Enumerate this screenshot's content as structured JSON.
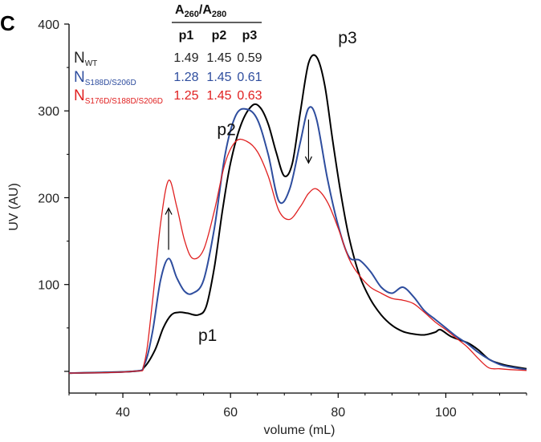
{
  "panel_label": "C",
  "chart_data": {
    "type": "line",
    "title": "",
    "xlabel": "volume (mL)",
    "ylabel": "UV (AU)",
    "xlim": [
      30,
      115
    ],
    "ylim": [
      -25,
      400
    ],
    "x_ticks": [
      40,
      60,
      80,
      100
    ],
    "y_ticks": [
      100,
      200,
      300,
      400
    ],
    "grid": false,
    "legend": "top-left table",
    "series": [
      {
        "name": "N_WT",
        "color": "#000000",
        "x": [
          30,
          42,
          44,
          46,
          47.5,
          49,
          50.5,
          52,
          54,
          55.5,
          57,
          58.5,
          60,
          62,
          64,
          65.5,
          67,
          68.5,
          70,
          71.5,
          73,
          74.5,
          76,
          77.5,
          79,
          80.5,
          82,
          84,
          86,
          88,
          90,
          92,
          94,
          96,
          98,
          99,
          101,
          104,
          106,
          108,
          110,
          112,
          115
        ],
        "y": [
          -2,
          0,
          5,
          25,
          50,
          65,
          68,
          67,
          65,
          75,
          120,
          185,
          240,
          285,
          306,
          304,
          285,
          252,
          225,
          240,
          300,
          355,
          362,
          330,
          265,
          205,
          155,
          110,
          83,
          65,
          53,
          46,
          43,
          42,
          45,
          48,
          40,
          33,
          25,
          14,
          9,
          6,
          3
        ]
      },
      {
        "name": "N_S188D/S206D",
        "color": "#2e4d9e",
        "x": [
          30,
          42,
          44,
          45.5,
          47,
          48.5,
          50,
          51.5,
          53,
          55,
          57,
          59,
          61,
          63,
          65,
          67,
          69,
          71,
          73,
          74.5,
          76,
          78,
          80,
          82,
          84,
          86,
          88,
          90,
          92,
          94,
          96,
          98,
          100,
          102,
          104,
          106,
          108,
          110,
          112,
          115
        ],
        "y": [
          -2,
          0,
          8,
          45,
          105,
          130,
          108,
          92,
          90,
          105,
          165,
          250,
          295,
          302,
          290,
          250,
          196,
          210,
          265,
          303,
          290,
          222,
          168,
          132,
          128,
          115,
          97,
          90,
          97,
          86,
          70,
          60,
          50,
          40,
          32,
          22,
          14,
          8,
          5,
          2
        ]
      },
      {
        "name": "N_S176D/S188D/S206D",
        "color": "#e02020",
        "x": [
          30,
          42,
          44,
          45.5,
          47,
          48.5,
          50,
          51.5,
          53,
          55,
          57,
          59,
          61,
          63,
          65,
          67,
          69,
          71,
          73,
          74.5,
          76,
          78,
          80,
          82,
          84,
          86,
          88,
          90,
          92,
          94,
          96,
          98,
          100,
          102,
          104,
          106,
          108,
          110,
          112,
          115
        ],
        "y": [
          -2,
          0,
          10,
          80,
          170,
          220,
          190,
          150,
          130,
          140,
          185,
          240,
          265,
          265,
          253,
          225,
          185,
          175,
          190,
          205,
          210,
          195,
          165,
          130,
          110,
          97,
          90,
          84,
          82,
          78,
          68,
          57,
          48,
          38,
          28,
          15,
          4,
          3,
          2,
          1
        ]
      }
    ],
    "annotations": [
      {
        "text": "p1",
        "x": 54,
        "y": 35
      },
      {
        "text": "p2",
        "x": 57.5,
        "y": 272
      },
      {
        "text": "p3",
        "x": 80,
        "y": 378
      }
    ],
    "arrows": [
      {
        "x": 48.5,
        "y_from": 140,
        "y_to": 188,
        "direction": "up"
      },
      {
        "x": 74.5,
        "y_from": 290,
        "y_to": 240,
        "direction": "down"
      }
    ],
    "table": {
      "title_main": "A",
      "title_sub1": "260",
      "title_sep": "/A",
      "title_sub2": "280",
      "columns": [
        "p1",
        "p2",
        "p3"
      ],
      "rows": [
        {
          "name_main": "N",
          "name_sub": "WT",
          "color": "#222222",
          "values": [
            "1.49",
            "1.45",
            "0.59"
          ]
        },
        {
          "name_main": "N",
          "name_sub": "S188D/S206D",
          "color": "#2e4d9e",
          "values": [
            "1.28",
            "1.45",
            "0.61"
          ]
        },
        {
          "name_main": "N",
          "name_sub": "S176D/S188D/S206D",
          "color": "#e02020",
          "values": [
            "1.25",
            "1.45",
            "0.63"
          ]
        }
      ]
    }
  }
}
